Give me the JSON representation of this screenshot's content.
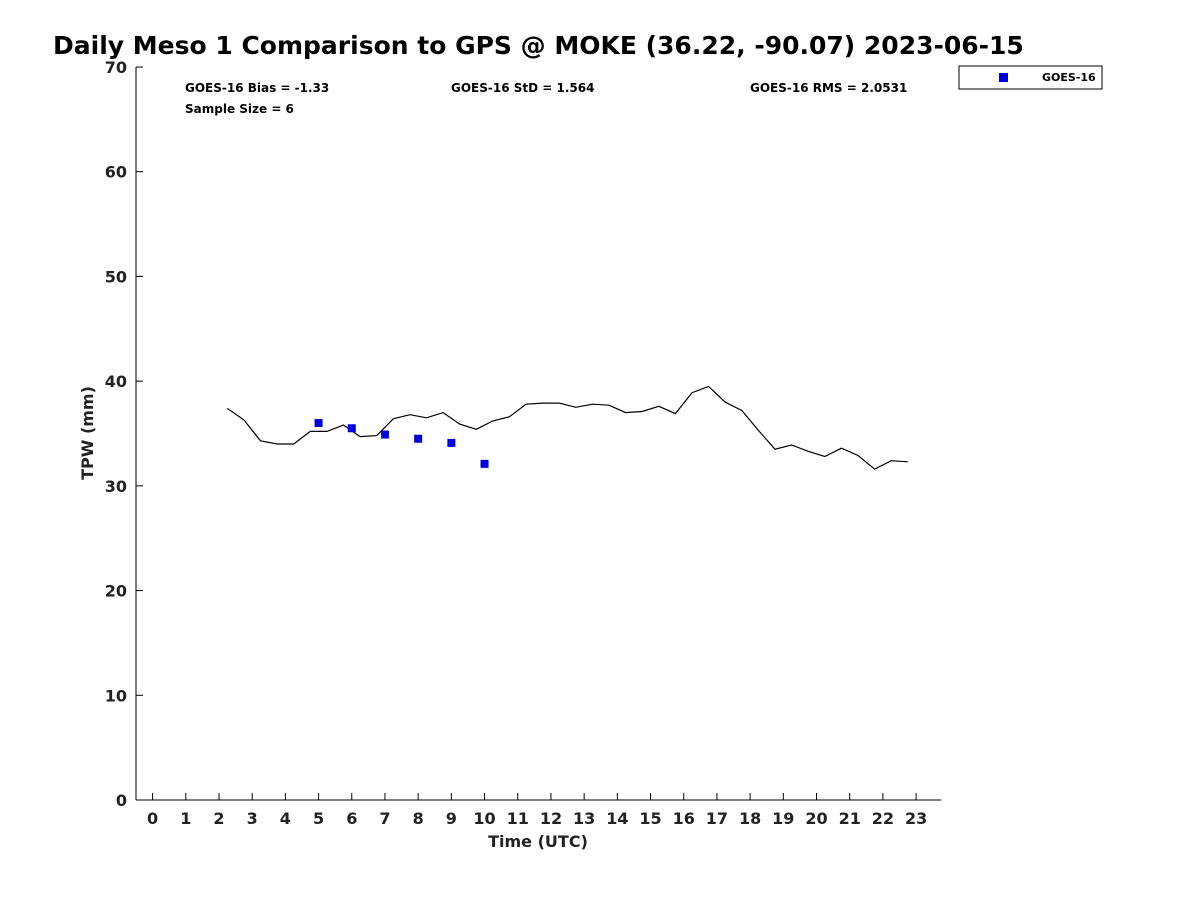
{
  "chart_data": {
    "type": "scatter",
    "title": "Daily Meso 1 Comparison to GPS @ MOKE (36.22, -90.07) 2023-06-15",
    "xlabel": "Time (UTC)",
    "ylabel": "TPW (mm)",
    "xlim": [
      -0.5,
      23.75
    ],
    "ylim": [
      0,
      70
    ],
    "x_ticks": [
      "0",
      "1",
      "2",
      "3",
      "4",
      "5",
      "6",
      "7",
      "8",
      "9",
      "10",
      "11",
      "12",
      "13",
      "14",
      "15",
      "16",
      "17",
      "18",
      "19",
      "20",
      "21",
      "22",
      "23"
    ],
    "y_ticks": [
      "0",
      "10",
      "20",
      "30",
      "40",
      "50",
      "60",
      "70"
    ],
    "grid": false,
    "legend_position": "top-right outside",
    "stats": {
      "bias": "GOES-16 Bias = -1.33",
      "std": "GOES-16 StD = 1.564",
      "rms": "GOES-16 RMS = 2.0531",
      "sample": "Sample Size = 6"
    },
    "series": [
      {
        "kind": "line",
        "color": "#000000",
        "x": [
          2.25,
          2.75,
          3.25,
          3.75,
          4.25,
          4.75,
          5.25,
          5.75,
          6.25,
          6.75,
          7.25,
          7.75,
          8.25,
          8.75,
          9.25,
          9.75,
          10.25,
          10.75,
          11.25,
          11.75,
          12.25,
          12.75,
          13.25,
          13.75,
          14.25,
          14.75,
          15.25,
          15.75,
          16.25,
          16.75,
          17.25,
          17.75,
          18.25,
          18.75,
          19.25,
          19.75,
          20.25,
          20.75,
          21.25,
          21.75,
          22.25,
          22.75
        ],
        "y": [
          37.4,
          36.3,
          34.3,
          34.0,
          34.0,
          35.2,
          35.2,
          35.8,
          34.7,
          34.8,
          36.4,
          36.8,
          36.5,
          37.0,
          35.9,
          35.4,
          36.2,
          36.6,
          37.8,
          37.9,
          37.9,
          37.5,
          37.8,
          37.7,
          37.0,
          37.1,
          37.6,
          36.9,
          38.9,
          39.5,
          38.0,
          37.2,
          35.3,
          33.5,
          33.9,
          33.3,
          32.8,
          33.6,
          32.9,
          31.6,
          32.4,
          32.3
        ]
      },
      {
        "kind": "scatter",
        "name": "GOES-16",
        "color": "#0000dd",
        "x": [
          5,
          6,
          7,
          8,
          9,
          10
        ],
        "y": [
          36.0,
          35.5,
          34.9,
          34.5,
          34.1,
          32.1
        ]
      }
    ]
  }
}
